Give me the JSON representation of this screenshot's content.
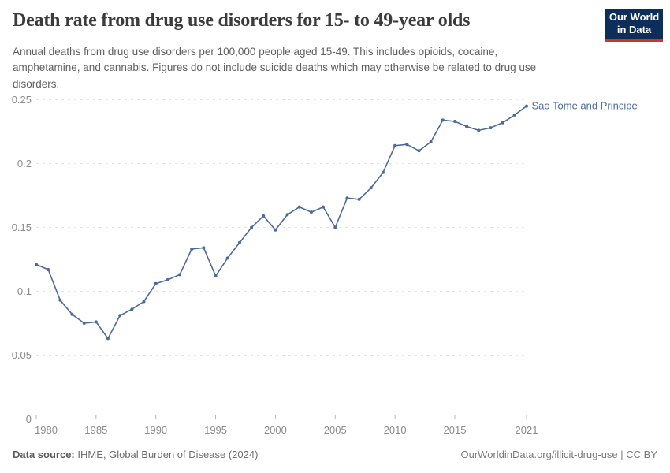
{
  "header": {
    "title": "Death rate from drug use disorders for 15- to 49-year olds",
    "subtitle": "Annual deaths from drug use disorders per 100,000 people aged 15-49. This includes opioids, cocaine, amphetamine, and cannabis. Figures do not include suicide deaths which may otherwise be related to drug use disorders."
  },
  "logo": {
    "line1": "Our World",
    "line2": "in Data",
    "bg_color": "#0d2e5a",
    "accent_color": "#d0342c"
  },
  "chart_data": {
    "type": "line",
    "title": "Death rate from drug use disorders for 15- to 49-year olds",
    "xlabel": "",
    "ylabel": "",
    "xlim": [
      1980,
      2021
    ],
    "ylim": [
      0,
      0.25
    ],
    "xticks": [
      1980,
      1985,
      1990,
      1995,
      2000,
      2005,
      2010,
      2015,
      2021
    ],
    "yticks": [
      0,
      0.05,
      0.1,
      0.15,
      0.2,
      0.25
    ],
    "grid": "horizontal-dashed",
    "legend_position": "end-of-line-label",
    "x": [
      1980,
      1981,
      1982,
      1983,
      1984,
      1985,
      1986,
      1987,
      1988,
      1989,
      1990,
      1991,
      1992,
      1993,
      1994,
      1995,
      1996,
      1997,
      1998,
      1999,
      2000,
      2001,
      2002,
      2003,
      2004,
      2005,
      2006,
      2007,
      2008,
      2009,
      2010,
      2011,
      2012,
      2013,
      2014,
      2015,
      2016,
      2017,
      2018,
      2019,
      2020,
      2021
    ],
    "series": [
      {
        "name": "Sao Tome and Principe",
        "color": "#4c6a9c",
        "values": [
          0.121,
          0.117,
          0.093,
          0.082,
          0.075,
          0.076,
          0.063,
          0.081,
          0.086,
          0.092,
          0.106,
          0.109,
          0.113,
          0.133,
          0.134,
          0.112,
          0.126,
          0.138,
          0.15,
          0.159,
          0.148,
          0.16,
          0.166,
          0.162,
          0.166,
          0.15,
          0.173,
          0.172,
          0.181,
          0.193,
          0.214,
          0.215,
          0.21,
          0.217,
          0.234,
          0.233,
          0.229,
          0.226,
          0.228,
          0.232,
          0.238,
          0.245
        ]
      }
    ],
    "axis_colors": {
      "grid": "#e3e3e3",
      "axis_line": "#a3a3a3",
      "tick": "#b8b8b8",
      "tick_label": "#8b8b8b"
    }
  },
  "footer": {
    "datasource_label": "Data source:",
    "datasource_value": " IHME, Global Burden of Disease (2024)",
    "credit": "OurWorldinData.org/illicit-drug-use | CC BY"
  }
}
